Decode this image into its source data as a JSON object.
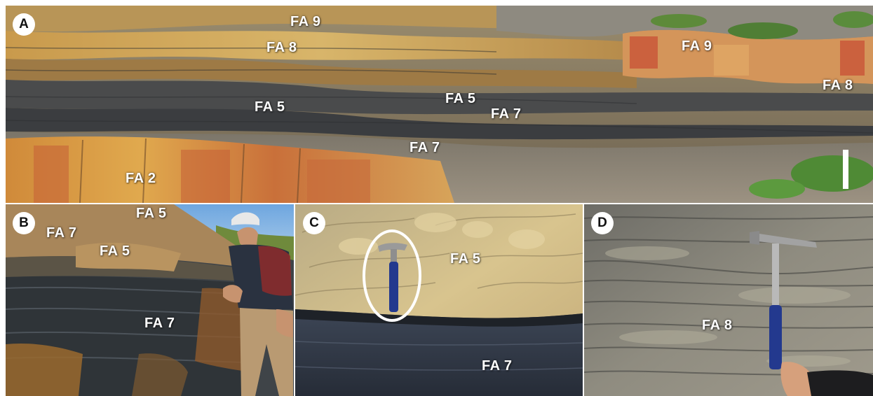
{
  "panels": {
    "a": {
      "label": "A",
      "annotations": [
        "FA 9",
        "FA 8",
        "FA 5",
        "FA 5",
        "FA 7",
        "FA 7",
        "FA 2",
        "FA 9",
        "FA 8"
      ]
    },
    "b": {
      "label": "B",
      "annotations": [
        "FA 5",
        "FA 7",
        "FA 5",
        "FA 7"
      ]
    },
    "c": {
      "label": "C",
      "annotations": [
        "FA 5",
        "FA 7"
      ]
    },
    "d": {
      "label": "D",
      "annotations": [
        "FA 8"
      ]
    }
  },
  "colors": {
    "annotation_text": "#ffffff",
    "badge_background": "#ffffff",
    "highlight_ellipse": "#ffffff",
    "sandstone": "#d9a94e",
    "orange_weathering": "#c8642d",
    "dark_shale": "#3e4348",
    "grey_scree": "#8d8678",
    "vegetation": "#4f8a35",
    "hammer_handle": "#23398e"
  }
}
